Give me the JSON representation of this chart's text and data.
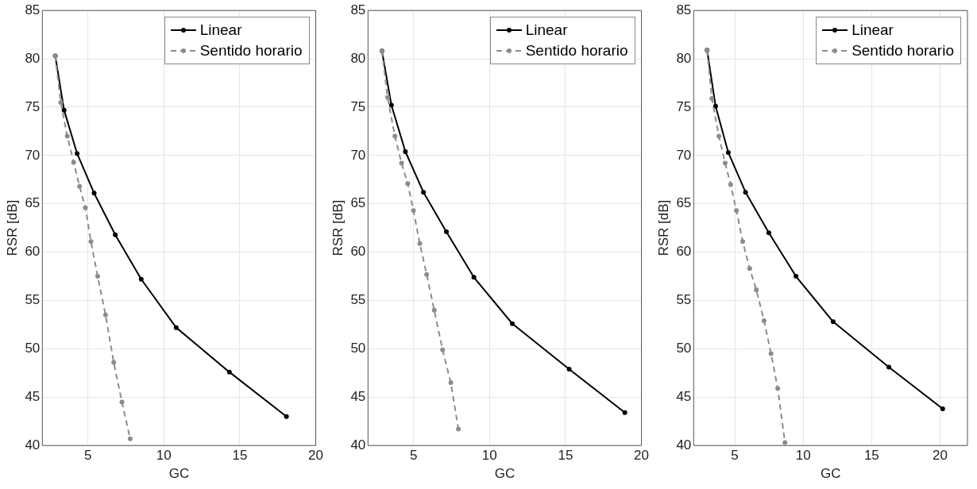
{
  "chart_data": [
    {
      "type": "line",
      "xlabel": "GC",
      "ylabel": "RSR [dB]",
      "xlim": [
        2,
        20
      ],
      "xticks": [
        5,
        10,
        15,
        20
      ],
      "ylim": [
        40,
        85
      ],
      "yticks": [
        40,
        45,
        50,
        55,
        60,
        65,
        70,
        75,
        80,
        85
      ],
      "grid": true,
      "legend": "top right",
      "marker": "circle",
      "series": [
        {
          "name": "Linear",
          "color": "#000000",
          "line_style": "solid",
          "x": [
            2.85,
            3.43,
            4.29,
            5.41,
            6.8,
            8.51,
            10.81,
            14.31,
            18.07
          ],
          "values": [
            80.3,
            74.7,
            70.2,
            66.1,
            61.8,
            57.2,
            52.2,
            47.6,
            43.0
          ]
        },
        {
          "name": "Sentido horario",
          "color": "#8c8c8c",
          "line_style": "dashed",
          "x": [
            2.85,
            3.21,
            3.64,
            4.06,
            4.45,
            4.83,
            5.2,
            5.64,
            6.16,
            6.7,
            7.24,
            7.78
          ],
          "values": [
            80.3,
            75.5,
            72.0,
            69.3,
            66.8,
            64.6,
            61.1,
            57.5,
            53.5,
            48.6,
            44.5,
            40.7
          ]
        }
      ]
    },
    {
      "type": "line",
      "xlabel": "GC",
      "ylabel": "RSR [dB]",
      "xlim": [
        2,
        20
      ],
      "xticks": [
        5,
        10,
        15,
        20
      ],
      "ylim": [
        40,
        85
      ],
      "yticks": [
        40,
        45,
        50,
        55,
        60,
        65,
        70,
        75,
        80,
        85
      ],
      "grid": true,
      "legend": "top right",
      "marker": "circle",
      "series": [
        {
          "name": "Linear",
          "color": "#000000",
          "line_style": "solid",
          "x": [
            2.92,
            3.54,
            4.46,
            5.65,
            7.16,
            8.97,
            11.5,
            15.24,
            18.91
          ],
          "values": [
            80.8,
            75.2,
            70.4,
            66.2,
            62.1,
            57.4,
            52.6,
            47.9,
            43.4
          ]
        },
        {
          "name": "Sentido horario",
          "color": "#8c8c8c",
          "line_style": "dashed",
          "x": [
            2.92,
            3.29,
            3.77,
            4.21,
            4.61,
            4.99,
            5.41,
            5.86,
            6.36,
            6.91,
            7.45,
            7.95
          ],
          "values": [
            80.8,
            76.0,
            72.0,
            69.2,
            67.1,
            64.3,
            60.9,
            57.7,
            54.0,
            49.9,
            46.5,
            41.7
          ]
        }
      ]
    },
    {
      "type": "line",
      "xlabel": "GC",
      "ylabel": "RSR [dB]",
      "xlim": [
        2,
        22
      ],
      "xticks": [
        5,
        10,
        15,
        20
      ],
      "ylim": [
        40,
        85
      ],
      "yticks": [
        40,
        45,
        50,
        55,
        60,
        65,
        70,
        75,
        80,
        85
      ],
      "grid": true,
      "legend": "top right",
      "marker": "circle",
      "series": [
        {
          "name": "Linear",
          "color": "#000000",
          "line_style": "solid",
          "x": [
            2.98,
            3.6,
            4.53,
            5.79,
            7.49,
            9.47,
            12.19,
            16.26,
            20.19
          ],
          "values": [
            80.9,
            75.1,
            70.3,
            66.2,
            62.0,
            57.5,
            52.8,
            48.1,
            43.8
          ]
        },
        {
          "name": "Sentido horario",
          "color": "#8c8c8c",
          "line_style": "dashed",
          "x": [
            2.98,
            3.33,
            3.84,
            4.3,
            4.7,
            5.12,
            5.58,
            6.09,
            6.58,
            7.14,
            7.65,
            8.14,
            8.67
          ],
          "values": [
            80.9,
            75.9,
            72.0,
            69.2,
            67.0,
            64.3,
            61.1,
            58.3,
            56.1,
            52.9,
            49.5,
            45.9,
            40.3
          ]
        }
      ]
    }
  ]
}
